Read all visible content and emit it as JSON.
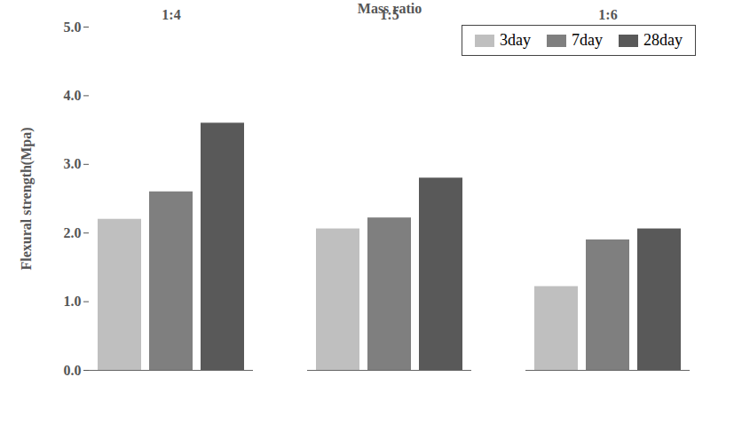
{
  "chart_data": {
    "type": "bar",
    "x_label": "Mass ratio",
    "y_label": "Flexural strength(Mpa)",
    "categories": [
      "1:4",
      "1:5",
      "1:6"
    ],
    "series": [
      {
        "name": "3day",
        "color": "#bfbfbf",
        "values": [
          2.2,
          2.06,
          1.22
        ]
      },
      {
        "name": "7day",
        "color": "#7f7f7f",
        "values": [
          2.6,
          2.22,
          1.9
        ]
      },
      {
        "name": "28day",
        "color": "#595959",
        "values": [
          3.6,
          2.8,
          2.06
        ]
      }
    ],
    "ylim": [
      0,
      5
    ],
    "yticks": [
      0,
      1,
      2,
      3,
      4,
      5
    ],
    "grid": false,
    "legend": "upper right"
  }
}
